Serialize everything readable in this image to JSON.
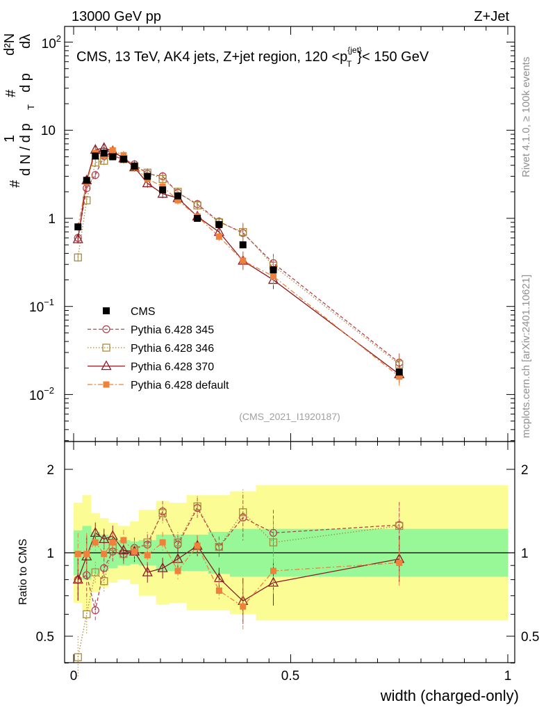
{
  "header": {
    "left": "13000 GeV pp",
    "right": "Z+Jet"
  },
  "plot": {
    "title": "CMS, 13 TeV, AK4 jets, Z+jet region, 120 <p",
    "title_sup": "{jet}",
    "title_sub": "T",
    "title_end": "}< 150 GeV",
    "analysis_id": "(CMS_2021_I1920187)",
    "side_rivet": "Rivet 4.1.0, ≥ 100k events",
    "side_mcplots": "mcplots.cern.ch [arXiv:2401.10621]",
    "ylabel_parts": {
      "hash1": "#",
      "one": "1",
      "dN_dpT": "d N / d p",
      "T": "T",
      "hash2": "#",
      "d2N": "d²N",
      "dpTdl": "d p",
      "dl": "dλ"
    },
    "ratio_ylabel": "Ratio to CMS",
    "xlabel": "width (charged-only)"
  },
  "chart_data": {
    "type": "line",
    "title": "CMS, 13 TeV, AK4 jets, Z+jet region, 120 < p_T^{jet} < 150 GeV",
    "xlabel": "width (charged-only)",
    "ylabel": "1/(dN/dp_T) d2N/(dp_T dλ)",
    "ylabel_ratio": "Ratio to CMS",
    "xlim": [
      -0.02,
      1.0
    ],
    "ylim": [
      0.003,
      150
    ],
    "yscale": "log",
    "ratio_ylim": [
      0.38,
      2.4
    ],
    "x_ticks": [
      "0",
      "0.5",
      "1"
    ],
    "y_ticks": [
      "10^-2",
      "10^-1",
      "1",
      "10",
      "10^2"
    ],
    "ratio_ticks": [
      "0.5",
      "1",
      "2"
    ],
    "x": [
      0.01,
      0.03,
      0.05,
      0.07,
      0.09,
      0.115,
      0.14,
      0.17,
      0.205,
      0.24,
      0.285,
      0.335,
      0.39,
      0.46,
      0.75
    ],
    "series": [
      {
        "name": "CMS",
        "values": [
          0.8,
          2.7,
          5.1,
          5.5,
          5.0,
          4.7,
          3.9,
          3.0,
          2.1,
          1.8,
          1.0,
          0.85,
          0.5,
          0.26,
          0.018
        ]
      },
      {
        "name": "Pythia 6.428 345",
        "values": [
          0.6,
          2.2,
          3.1,
          5.1,
          5.1,
          4.7,
          4.1,
          3.2,
          3.0,
          1.95,
          1.45,
          0.92,
          0.68,
          0.31,
          0.023
        ],
        "ratio": [
          0.8,
          0.83,
          0.62,
          0.88,
          1.01,
          0.99,
          1.04,
          1.07,
          1.41,
          1.07,
          1.45,
          1.05,
          1.34,
          1.18,
          1.26
        ]
      },
      {
        "name": "Pythia 6.428 346",
        "values": [
          0.36,
          1.6,
          4.3,
          4.5,
          5.2,
          4.7,
          3.9,
          3.3,
          2.8,
          2.0,
          1.4,
          0.9,
          0.7,
          0.29,
          0.022
        ],
        "ratio": [
          0.42,
          0.6,
          0.85,
          0.79,
          1.05,
          0.99,
          1.02,
          1.09,
          1.39,
          1.09,
          1.47,
          1.05,
          1.4,
          1.09,
          1.25
        ]
      },
      {
        "name": "Pythia 6.428 370",
        "values": [
          0.58,
          2.7,
          6.0,
          6.3,
          5.8,
          4.8,
          3.8,
          2.5,
          1.9,
          1.7,
          1.05,
          0.7,
          0.33,
          0.2,
          0.017
        ],
        "ratio": [
          0.8,
          0.97,
          1.18,
          1.12,
          1.15,
          1.02,
          1.01,
          0.85,
          0.88,
          0.95,
          1.06,
          0.81,
          0.67,
          0.78,
          0.95
        ]
      },
      {
        "name": "Pythia 6.428 default",
        "values": [
          0.8,
          2.6,
          5.5,
          5.2,
          5.9,
          5.2,
          3.8,
          2.8,
          2.3,
          1.6,
          1.05,
          0.62,
          0.33,
          0.22,
          0.016
        ],
        "ratio": [
          0.99,
          0.99,
          1.09,
          0.99,
          1.09,
          1.11,
          1.01,
          0.98,
          1.09,
          0.86,
          1.06,
          0.73,
          0.64,
          0.86,
          0.92
        ]
      }
    ],
    "legend": [
      "CMS",
      "Pythia 6.428 345",
      "Pythia 6.428 346",
      "Pythia 6.428 370",
      "Pythia 6.428 default"
    ],
    "legend_position": "left",
    "bins": [
      0.0,
      0.02,
      0.04,
      0.06,
      0.08,
      0.1,
      0.13,
      0.15,
      0.19,
      0.22,
      0.26,
      0.31,
      0.36,
      0.42,
      0.5,
      1.0
    ],
    "uncertainty_band_inner": [
      0.83,
      0.8,
      0.84,
      0.86,
      0.88,
      0.9,
      0.91,
      0.9,
      0.86,
      0.86,
      0.86,
      0.84,
      0.82,
      0.82,
      0.82
    ],
    "uncertainty_band_outer": [
      0.66,
      0.62,
      0.72,
      0.75,
      0.78,
      0.8,
      0.77,
      0.7,
      0.65,
      0.66,
      0.62,
      0.62,
      0.6,
      0.57,
      0.57
    ]
  },
  "colors": {
    "cms": "#000000",
    "p345": "#b84050",
    "p346": "#a88a3c",
    "p370": "#8b1a22",
    "pdef": "#f0813a",
    "band_inner": "#98f898",
    "band_outer": "#fcfc94"
  }
}
